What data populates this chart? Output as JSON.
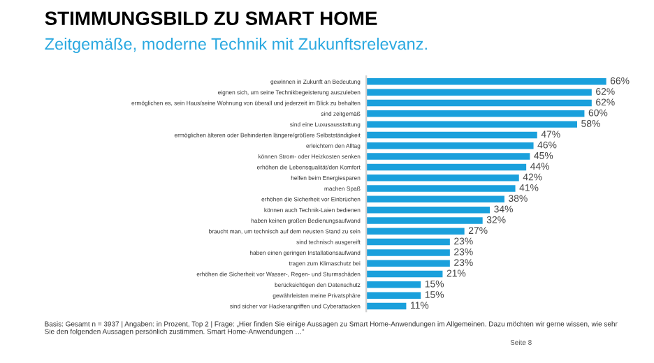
{
  "chart_data": {
    "type": "bar",
    "orientation": "horizontal",
    "title": "STIMMUNGSBILD ZU SMART HOME",
    "subtitle": "Zeitgemäße, moderne Technik mit Zukunftsrelevanz.",
    "categories": [
      "gewinnen in Zukunft an Bedeutung",
      "eignen sich, um seine Technikbegeisterung auszuleben",
      "ermöglichen es, sein Haus/seine Wohnung von überall und jederzeit im Blick zu behalten",
      "sind zeitgemäß",
      "sind eine Luxusausstattung",
      "ermöglichen älteren oder Behinderten längere/größere Selbstständigkeit",
      "erleichtern den Alltag",
      "können Strom- oder Heizkosten senken",
      "erhöhen die Lebensqualität/den Komfort",
      "helfen beim Energiesparen",
      "machen Spaß",
      "erhöhen die Sicherheit vor Einbrüchen",
      "können auch Technik-Laien bedienen",
      "haben keinen großen Bedienungsaufwand",
      "braucht man, um technisch auf dem neusten Stand zu sein",
      "sind technisch ausgereift",
      "haben einen geringen Installationsaufwand",
      "tragen zum Klimaschutz bei",
      "erhöhen die Sicherheit vor Wasser-, Regen- und Sturmschäden",
      "berücksichtigen den Datenschutz",
      "gewährleisten meine Privatsphäre",
      "sind sicher vor Hackerangriffen und Cyberattacken"
    ],
    "values": [
      66,
      62,
      62,
      60,
      58,
      47,
      46,
      45,
      44,
      42,
      41,
      38,
      34,
      32,
      27,
      23,
      23,
      23,
      21,
      15,
      15,
      11
    ],
    "value_labels": [
      "66%",
      "62%",
      "62%",
      "60%",
      "58%",
      "47%",
      "46%",
      "45%",
      "44%",
      "42%",
      "41%",
      "38%",
      "34%",
      "32%",
      "27%",
      "23%",
      "23%",
      "23%",
      "21%",
      "15%",
      "15%",
      "11%"
    ],
    "color": "#1aa0dc",
    "tick_labels": "y",
    "grid": false,
    "legend": false,
    "annotations": [
      "Basis: Gesamt n = 3937 | Angaben: in Prozent, Top 2 | Frage: „Hier finden Sie einige Aussagen zu Smart Home-Anwendungen im Allgemeinen. Dazu möchten wir gerne wissen, wie sehr Sie den folgenden Aussagen persönlich zustimmen. Smart Home-Anwendungen …“",
      "Seite 8"
    ]
  }
}
